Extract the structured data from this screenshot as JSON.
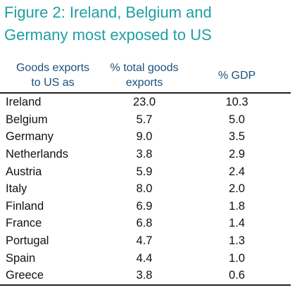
{
  "title_line1": "Figure 2: Ireland, Belgium and",
  "title_line2": "Germany most exposed to US",
  "header": {
    "country_line1": "Goods exports",
    "country_line2": "to US as",
    "share_line1": "% total goods",
    "share_line2": "exports",
    "gdp": "% GDP"
  },
  "colors": {
    "title": "#1e9fa4",
    "header": "#1c4f7c"
  },
  "chart_data": {
    "type": "table",
    "title": "Figure 2: Ireland, Belgium and Germany most exposed to US",
    "columns": [
      "Goods exports to US as",
      "% total goods exports",
      "% GDP"
    ],
    "rows": [
      {
        "country": "Ireland",
        "share": "23.0",
        "gdp": "10.3"
      },
      {
        "country": "Belgium",
        "share": "5.7",
        "gdp": "5.0"
      },
      {
        "country": "Germany",
        "share": "9.0",
        "gdp": "3.5"
      },
      {
        "country": "Netherlands",
        "share": "3.8",
        "gdp": "2.9"
      },
      {
        "country": "Austria",
        "share": "5.9",
        "gdp": "2.4"
      },
      {
        "country": "Italy",
        "share": "8.0",
        "gdp": "2.0"
      },
      {
        "country": "Finland",
        "share": "6.9",
        "gdp": "1.8"
      },
      {
        "country": "France",
        "share": "6.8",
        "gdp": "1.4"
      },
      {
        "country": "Portugal",
        "share": "4.7",
        "gdp": "1.3"
      },
      {
        "country": "Spain",
        "share": "4.4",
        "gdp": "1.0"
      },
      {
        "country": "Greece",
        "share": "3.8",
        "gdp": "0.6"
      }
    ]
  }
}
